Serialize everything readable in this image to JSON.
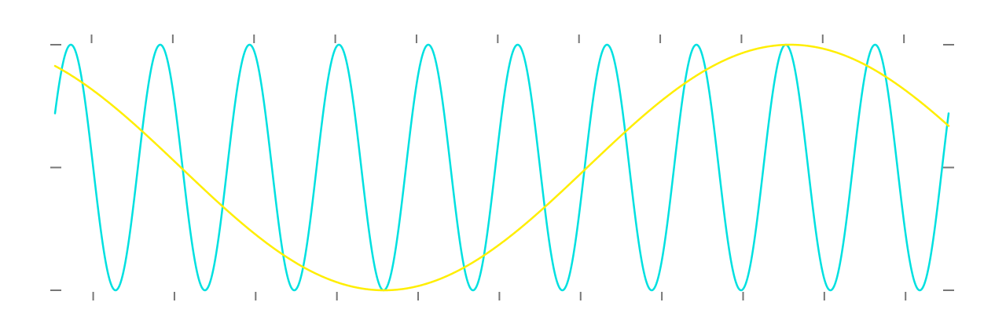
{
  "chart_data": {
    "type": "line",
    "title": "",
    "xlabel": "",
    "ylabel": "",
    "xlim": [
      0,
      11
    ],
    "ylim": [
      -1,
      1
    ],
    "grid": false,
    "legend": "none",
    "top_ticks_x": [
      0.45,
      1.45,
      2.45,
      3.45,
      4.45,
      5.45,
      6.45,
      7.45,
      8.45,
      9.45,
      10.45
    ],
    "bottom_ticks_x": [
      0.47,
      1.47,
      2.47,
      3.47,
      4.47,
      5.47,
      6.47,
      7.47,
      8.47,
      9.47,
      10.47
    ],
    "y_ticks": [
      -1,
      0,
      1
    ],
    "series": [
      {
        "style": "sine",
        "color": "#00e0e0",
        "amplitude": 1,
        "period": 1.1,
        "phase_offset": 0.08,
        "x_start": 0,
        "x_end": 11
      },
      {
        "style": "sine",
        "color": "#ffee00",
        "amplitude": 1,
        "period": 10.0,
        "phase_offset": 3.45,
        "x_start": 0,
        "x_end": 11
      }
    ]
  }
}
